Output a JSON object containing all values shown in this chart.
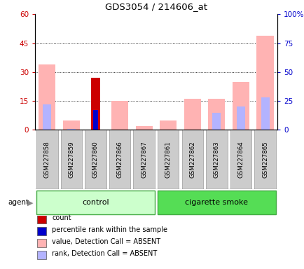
{
  "title": "GDS3054 / 214606_at",
  "samples": [
    "GSM227858",
    "GSM227859",
    "GSM227860",
    "GSM227866",
    "GSM227867",
    "GSM227861",
    "GSM227862",
    "GSM227863",
    "GSM227864",
    "GSM227865"
  ],
  "groups": [
    "control",
    "control",
    "control",
    "control",
    "control",
    "cigarette smoke",
    "cigarette smoke",
    "cigarette smoke",
    "cigarette smoke",
    "cigarette smoke"
  ],
  "value_absent": [
    34,
    5,
    0,
    15,
    2,
    5,
    16,
    16,
    25,
    49
  ],
  "rank_absent": [
    22,
    1,
    0,
    0,
    0,
    0,
    0,
    15,
    20,
    28
  ],
  "count": [
    0,
    0,
    27,
    0,
    0,
    0,
    0,
    0,
    0,
    0
  ],
  "percentile_rank": [
    0,
    0,
    17,
    0,
    0,
    0,
    0,
    0,
    0,
    0
  ],
  "ylim_left": [
    0,
    60
  ],
  "ylim_right": [
    0,
    100
  ],
  "yticks_left": [
    0,
    15,
    30,
    45,
    60
  ],
  "yticks_right": [
    0,
    25,
    50,
    75,
    100
  ],
  "yticklabels_left": [
    "0",
    "15",
    "30",
    "45",
    "60"
  ],
  "yticklabels_right": [
    "0",
    "25",
    "50",
    "75",
    "100%"
  ],
  "color_count": "#cc0000",
  "color_percentile": "#0000cc",
  "color_value_absent": "#ffb3b3",
  "color_rank_absent": "#b3b3ff",
  "bar_width": 0.7,
  "color_group_control_light": "#ccffcc",
  "color_group_cs_light": "#55dd55",
  "color_group_border": "#44aa44",
  "color_sample_box": "#cccccc",
  "color_sample_box_edge": "#999999",
  "legend_items": [
    {
      "label": "count",
      "color": "#cc0000"
    },
    {
      "label": "percentile rank within the sample",
      "color": "#0000cc"
    },
    {
      "label": "value, Detection Call = ABSENT",
      "color": "#ffb3b3"
    },
    {
      "label": "rank, Detection Call = ABSENT",
      "color": "#b3b3ff"
    }
  ]
}
